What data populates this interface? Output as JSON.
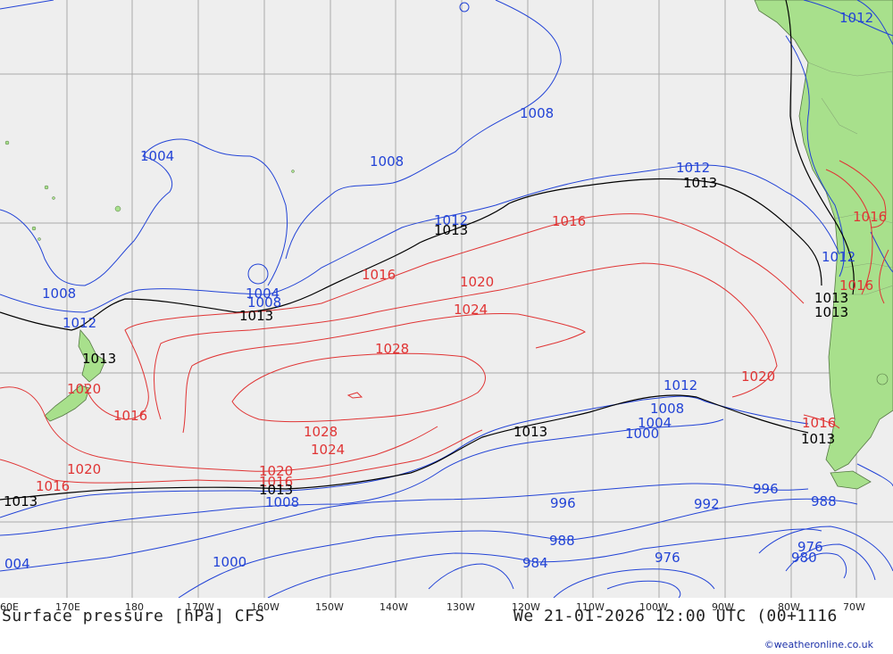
{
  "map": {
    "title": "Surface pressure [hPa] CFS",
    "valid_time": "We 21-01-2026 12:00 UTC (00+1116",
    "credit": "©weatheronline.co.uk",
    "colors": {
      "ocean": "#eeeeee",
      "land": "#a8e08c",
      "grid": "#a0a0a0",
      "low": "#2243d6",
      "mean": "#000000",
      "high": "#e03434"
    },
    "longitude_labels": [
      "60E",
      "170E",
      "180",
      "170W",
      "160W",
      "150W",
      "140W",
      "130W",
      "120W",
      "110W",
      "100W",
      "90W",
      "80W",
      "70W"
    ],
    "isobar_labels": [
      "1012",
      "1008",
      "1004",
      "1008",
      "1012",
      "1013",
      "1016",
      "1013",
      "1012",
      "1016",
      "1004",
      "1008",
      "1013",
      "1008",
      "1012",
      "1013",
      "1016",
      "1020",
      "1024",
      "1028",
      "1020",
      "1016",
      "1016",
      "1013",
      "1012",
      "1016",
      "1013",
      "1013",
      "1020",
      "1012",
      "1008",
      "1004",
      "1000",
      "1016",
      "1013",
      "1028",
      "1024",
      "1020",
      "1020",
      "1016",
      "1013",
      "1013",
      "1008",
      "996",
      "996",
      "992",
      "988",
      "988",
      "004",
      "1000",
      "984",
      "976",
      "976",
      "980"
    ]
  }
}
